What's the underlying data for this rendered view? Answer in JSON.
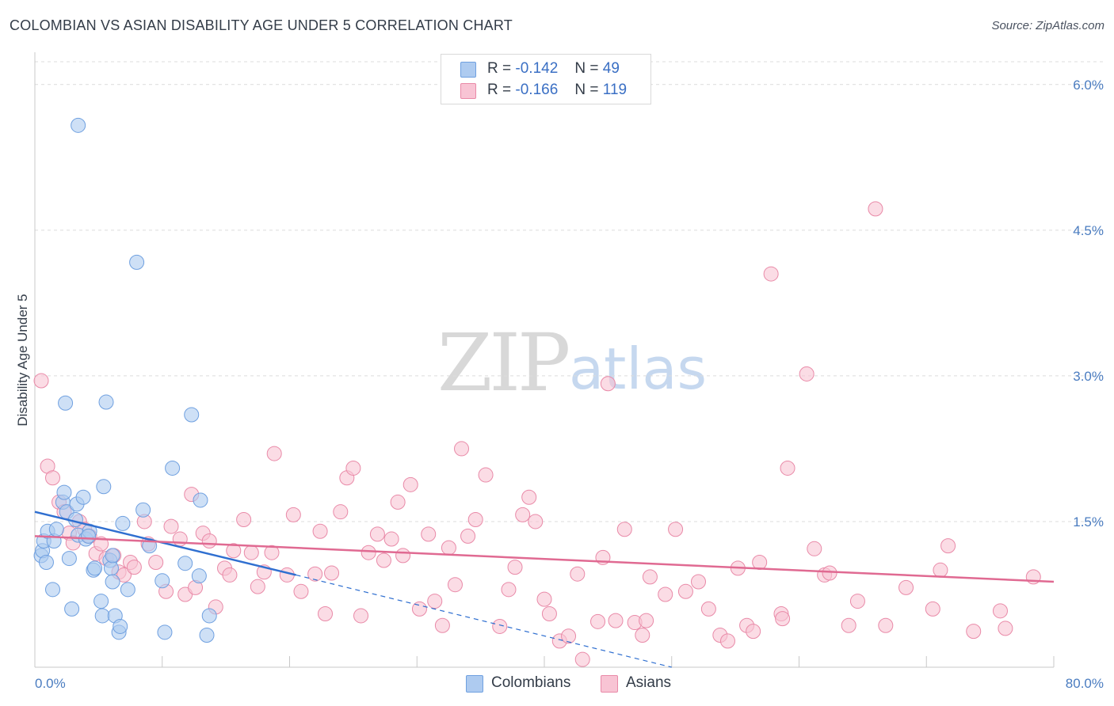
{
  "header": {
    "title": "COLOMBIAN VS ASIAN DISABILITY AGE UNDER 5 CORRELATION CHART",
    "source": "Source: ZipAtlas.com"
  },
  "watermark": {
    "zip": "ZIP",
    "atlas": "atlas"
  },
  "legend": {
    "rows": [
      {
        "r_label": "R =",
        "r_value": "-0.142",
        "n_label": "N =",
        "n_value": "49",
        "color": "#aecbf0"
      },
      {
        "r_label": "R =",
        "r_value": "-0.166",
        "n_label": "N =",
        "n_value": "119",
        "color": "#f8c4d4"
      }
    ]
  },
  "bottom_legend": [
    {
      "label": "Colombians",
      "color": "#aecbf0"
    },
    {
      "label": "Asians",
      "color": "#f8c4d4"
    }
  ],
  "chart_data": {
    "type": "scatter",
    "title": "COLOMBIAN VS ASIAN DISABILITY AGE UNDER 5 CORRELATION CHART",
    "xlabel": "",
    "ylabel": "Disability Age Under 5",
    "xlim": [
      0,
      80
    ],
    "ylim": [
      0,
      6.3
    ],
    "x_tick_labels": [
      "0.0%",
      "80.0%"
    ],
    "y_ticks": [
      1.5,
      3.0,
      4.5,
      6.0
    ],
    "y_tick_labels": [
      "1.5%",
      "3.0%",
      "4.5%",
      "6.0%"
    ],
    "grid": true,
    "series": [
      {
        "name": "Colombians",
        "color": "#6fa0e0",
        "fill": "#aecbf0",
        "trend": {
          "x0": 0,
          "y0": 1.6,
          "x1": 20.5,
          "y1": 0.95,
          "dash_to_x": 50,
          "dash_to_y": 0.0,
          "color": "#2f6fd0"
        },
        "points": [
          [
            0.5,
            1.15
          ],
          [
            0.6,
            1.2
          ],
          [
            0.7,
            1.3
          ],
          [
            1.0,
            1.4
          ],
          [
            1.5,
            1.3
          ],
          [
            1.4,
            0.8
          ],
          [
            2.2,
            1.7
          ],
          [
            2.3,
            1.8
          ],
          [
            2.5,
            1.6
          ],
          [
            2.7,
            1.12
          ],
          [
            3.2,
            1.52
          ],
          [
            3.3,
            1.68
          ],
          [
            3.4,
            1.36
          ],
          [
            3.8,
            1.75
          ],
          [
            4.0,
            1.32
          ],
          [
            4.3,
            1.4
          ],
          [
            4.6,
            1.0
          ],
          [
            4.7,
            1.02
          ],
          [
            5.2,
            0.68
          ],
          [
            5.3,
            0.53
          ],
          [
            5.6,
            2.73
          ],
          [
            5.9,
            1.1
          ],
          [
            6.0,
            1.02
          ],
          [
            6.1,
            0.88
          ],
          [
            6.3,
            0.53
          ],
          [
            6.6,
            0.36
          ],
          [
            6.7,
            0.42
          ],
          [
            6.9,
            1.48
          ],
          [
            7.3,
            0.8
          ],
          [
            8.0,
            4.17
          ],
          [
            8.5,
            1.62
          ],
          [
            9.0,
            1.25
          ],
          [
            10.2,
            0.36
          ],
          [
            10.8,
            2.05
          ],
          [
            12.3,
            2.6
          ],
          [
            12.9,
            0.94
          ],
          [
            13.0,
            1.72
          ],
          [
            13.7,
            0.53
          ],
          [
            3.4,
            5.58
          ],
          [
            2.4,
            2.72
          ],
          [
            5.4,
            1.86
          ],
          [
            6.1,
            1.15
          ],
          [
            10.0,
            0.89
          ],
          [
            13.5,
            0.33
          ],
          [
            0.9,
            1.08
          ],
          [
            1.7,
            1.42
          ],
          [
            2.9,
            0.6
          ],
          [
            4.2,
            1.35
          ],
          [
            11.8,
            1.07
          ]
        ]
      },
      {
        "name": "Asians",
        "color": "#e98aa8",
        "fill": "#f8c4d4",
        "trend": {
          "x0": 0,
          "y0": 1.35,
          "x1": 80,
          "y1": 0.88,
          "color": "#e06a92"
        },
        "points": [
          [
            0.5,
            2.95
          ],
          [
            1.0,
            2.07
          ],
          [
            1.4,
            1.95
          ],
          [
            1.9,
            1.7
          ],
          [
            2.3,
            1.6
          ],
          [
            2.7,
            1.38
          ],
          [
            3.0,
            1.28
          ],
          [
            3.5,
            1.5
          ],
          [
            3.9,
            1.42
          ],
          [
            4.3,
            1.35
          ],
          [
            4.8,
            1.17
          ],
          [
            5.2,
            1.27
          ],
          [
            5.6,
            1.12
          ],
          [
            6.2,
            1.15
          ],
          [
            6.6,
            0.98
          ],
          [
            7.0,
            0.95
          ],
          [
            7.5,
            1.08
          ],
          [
            7.8,
            1.03
          ],
          [
            8.6,
            1.5
          ],
          [
            8.9,
            1.27
          ],
          [
            9.5,
            1.08
          ],
          [
            10.3,
            0.78
          ],
          [
            10.7,
            1.45
          ],
          [
            11.4,
            1.32
          ],
          [
            11.8,
            0.75
          ],
          [
            12.3,
            1.78
          ],
          [
            12.6,
            0.82
          ],
          [
            13.2,
            1.38
          ],
          [
            13.7,
            1.3
          ],
          [
            14.2,
            0.62
          ],
          [
            14.9,
            1.02
          ],
          [
            15.3,
            0.95
          ],
          [
            15.6,
            1.2
          ],
          [
            16.4,
            1.52
          ],
          [
            17.0,
            1.18
          ],
          [
            17.5,
            0.83
          ],
          [
            18.0,
            0.98
          ],
          [
            18.6,
            1.18
          ],
          [
            18.8,
            2.2
          ],
          [
            19.8,
            0.95
          ],
          [
            20.3,
            1.57
          ],
          [
            20.9,
            0.78
          ],
          [
            22.0,
            0.96
          ],
          [
            22.4,
            1.4
          ],
          [
            22.8,
            0.55
          ],
          [
            23.3,
            0.97
          ],
          [
            24.0,
            1.6
          ],
          [
            24.5,
            1.95
          ],
          [
            25.0,
            2.05
          ],
          [
            25.6,
            0.53
          ],
          [
            26.2,
            1.18
          ],
          [
            26.9,
            1.37
          ],
          [
            27.4,
            1.1
          ],
          [
            28.0,
            1.32
          ],
          [
            28.5,
            1.7
          ],
          [
            28.9,
            1.15
          ],
          [
            29.5,
            1.88
          ],
          [
            30.2,
            0.6
          ],
          [
            30.9,
            1.37
          ],
          [
            31.4,
            0.68
          ],
          [
            32.0,
            0.43
          ],
          [
            32.5,
            1.23
          ],
          [
            33.0,
            0.85
          ],
          [
            33.5,
            2.25
          ],
          [
            34.0,
            1.35
          ],
          [
            34.6,
            1.52
          ],
          [
            35.4,
            1.98
          ],
          [
            36.5,
            0.42
          ],
          [
            37.2,
            0.8
          ],
          [
            37.7,
            1.03
          ],
          [
            38.3,
            1.57
          ],
          [
            38.8,
            1.75
          ],
          [
            39.3,
            1.5
          ],
          [
            40.0,
            0.7
          ],
          [
            40.4,
            0.55
          ],
          [
            41.2,
            0.27
          ],
          [
            41.9,
            0.32
          ],
          [
            42.6,
            0.96
          ],
          [
            43.0,
            0.08
          ],
          [
            44.2,
            0.47
          ],
          [
            44.6,
            1.13
          ],
          [
            45.0,
            2.92
          ],
          [
            45.6,
            0.48
          ],
          [
            46.3,
            1.42
          ],
          [
            47.1,
            0.46
          ],
          [
            47.7,
            0.33
          ],
          [
            48.3,
            0.93
          ],
          [
            49.5,
            0.75
          ],
          [
            50.3,
            1.42
          ],
          [
            51.1,
            0.78
          ],
          [
            52.1,
            0.88
          ],
          [
            52.9,
            0.6
          ],
          [
            53.8,
            0.33
          ],
          [
            54.4,
            0.27
          ],
          [
            55.2,
            1.02
          ],
          [
            55.9,
            0.43
          ],
          [
            56.4,
            0.37
          ],
          [
            56.9,
            1.08
          ],
          [
            57.8,
            4.05
          ],
          [
            58.6,
            0.55
          ],
          [
            59.1,
            2.05
          ],
          [
            60.6,
            3.02
          ],
          [
            61.2,
            1.22
          ],
          [
            62.0,
            0.95
          ],
          [
            62.4,
            0.97
          ],
          [
            63.9,
            0.43
          ],
          [
            64.6,
            0.68
          ],
          [
            66.0,
            4.72
          ],
          [
            66.8,
            0.43
          ],
          [
            68.4,
            0.82
          ],
          [
            70.5,
            0.6
          ],
          [
            71.1,
            1.0
          ],
          [
            71.7,
            1.25
          ],
          [
            73.7,
            0.37
          ],
          [
            75.8,
            0.58
          ],
          [
            76.2,
            0.4
          ],
          [
            78.4,
            0.93
          ],
          [
            58.7,
            0.5
          ],
          [
            48.0,
            0.48
          ]
        ]
      }
    ]
  }
}
